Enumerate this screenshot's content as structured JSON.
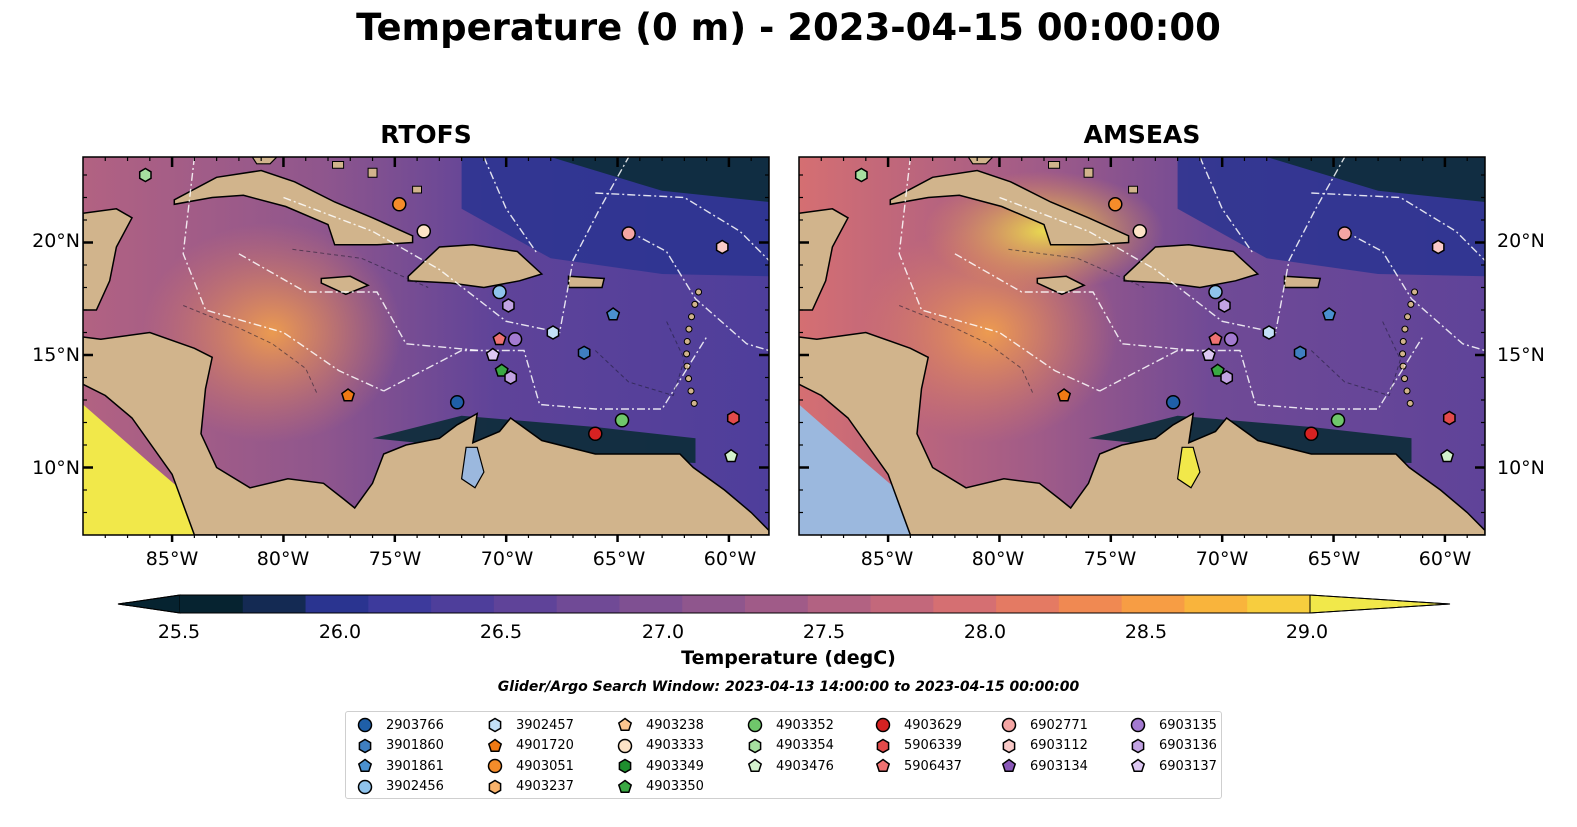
{
  "title": "Temperature (0 m) - 2023-04-15 00:00:00",
  "panels": [
    {
      "title": "RTOFS"
    },
    {
      "title": "AMSEAS"
    }
  ],
  "map": {
    "lat_labels": [
      "20°N",
      "15°N",
      "10°N"
    ],
    "lon_labels": [
      "85°W",
      "80°W",
      "75°W",
      "70°W",
      "65°W",
      "60°W"
    ],
    "extent": {
      "lon": [
        -89.0,
        -58.2
      ],
      "lat": [
        7.0,
        23.8
      ]
    },
    "colors": {
      "land": "#d1b48c",
      "lakes": "#9bb8de",
      "deep": "#0d2c3a",
      "mid": "#6a4a98",
      "warm": "#e4805d"
    }
  },
  "colorbar": {
    "label": "Temperature (degC)",
    "ticks": [
      "25.5",
      "26.0",
      "26.5",
      "27.0",
      "27.5",
      "28.0",
      "28.5",
      "29.0"
    ],
    "range": [
      25.5,
      29.25
    ],
    "colors": [
      "#062330",
      "#142a53",
      "#2a3490",
      "#3d3a9c",
      "#4e3e9b",
      "#5f4399",
      "#704a96",
      "#7f5092",
      "#8f568d",
      "#a05b88",
      "#b26282",
      "#c3687b",
      "#d56f72",
      "#e47a63",
      "#f08952",
      "#f79d44",
      "#f9b43c",
      "#f7cd3e",
      "#f1e84a"
    ]
  },
  "search_window": "Glider/Argo Search Window: 2023-04-13 14:00:00 to 2023-04-15 00:00:00",
  "legend": [
    {
      "id": "2903766",
      "marker": "circle",
      "color": "#1f5fa8"
    },
    {
      "id": "3901860",
      "marker": "hexagon",
      "color": "#3f7fc1"
    },
    {
      "id": "3901861",
      "marker": "pentagon",
      "color": "#4a90cf"
    },
    {
      "id": "3902456",
      "marker": "circle",
      "color": "#8fc3ec"
    },
    {
      "id": "3902457",
      "marker": "hexagon",
      "color": "#c4e0f7"
    },
    {
      "id": "4901720",
      "marker": "pentagon",
      "color": "#f07a14"
    },
    {
      "id": "4903051",
      "marker": "circle",
      "color": "#f58c2a"
    },
    {
      "id": "4903237",
      "marker": "hexagon",
      "color": "#f9b36b"
    },
    {
      "id": "4903238",
      "marker": "pentagon",
      "color": "#fbc58f"
    },
    {
      "id": "4903333",
      "marker": "circle",
      "color": "#fde3c6"
    },
    {
      "id": "4903349",
      "marker": "hexagon",
      "color": "#1e8f2e"
    },
    {
      "id": "4903350",
      "marker": "pentagon",
      "color": "#3aa843"
    },
    {
      "id": "4903352",
      "marker": "circle",
      "color": "#6fc66b"
    },
    {
      "id": "4903354",
      "marker": "hexagon",
      "color": "#a7e0a0"
    },
    {
      "id": "4903476",
      "marker": "pentagon",
      "color": "#d4f2cd"
    },
    {
      "id": "4903629",
      "marker": "circle",
      "color": "#d62222"
    },
    {
      "id": "5906339",
      "marker": "hexagon",
      "color": "#e34a4a"
    },
    {
      "id": "5906437",
      "marker": "pentagon",
      "color": "#ef7272"
    },
    {
      "id": "6902771",
      "marker": "circle",
      "color": "#f5a6a4"
    },
    {
      "id": "6903112",
      "marker": "hexagon",
      "color": "#f9cac8"
    },
    {
      "id": "6903134",
      "marker": "pentagon",
      "color": "#8a58b8"
    },
    {
      "id": "6903135",
      "marker": "circle",
      "color": "#a37ad0"
    },
    {
      "id": "6903136",
      "marker": "hexagon",
      "color": "#c2a3e2"
    },
    {
      "id": "6903137",
      "marker": "pentagon",
      "color": "#ddc8f2"
    }
  ],
  "floats": [
    {
      "id": "4903354",
      "lon": -86.2,
      "lat": 23.0
    },
    {
      "id": "4903051",
      "lon": -74.8,
      "lat": 21.7
    },
    {
      "id": "4903333",
      "lon": -73.7,
      "lat": 20.5
    },
    {
      "id": "6902771",
      "lon": -64.5,
      "lat": 20.4
    },
    {
      "id": "6903112",
      "lon": -60.3,
      "lat": 19.8
    },
    {
      "id": "3902456",
      "lon": -70.3,
      "lat": 17.8
    },
    {
      "id": "6903136",
      "lon": -69.9,
      "lat": 17.2
    },
    {
      "id": "3902457",
      "lon": -67.9,
      "lat": 16.0
    },
    {
      "id": "3901861",
      "lon": -65.2,
      "lat": 16.8
    },
    {
      "id": "5906437",
      "lon": -70.3,
      "lat": 15.7
    },
    {
      "id": "6903135",
      "lon": -69.6,
      "lat": 15.7
    },
    {
      "id": "6903137",
      "lon": -70.6,
      "lat": 15.0
    },
    {
      "id": "3901860",
      "lon": -66.5,
      "lat": 15.1
    },
    {
      "id": "4903350",
      "lon": -70.2,
      "lat": 14.3
    },
    {
      "id": "6903136",
      "lon": -69.8,
      "lat": 14.0
    },
    {
      "id": "4901720",
      "lon": -77.1,
      "lat": 13.2
    },
    {
      "id": "2903766",
      "lon": -72.2,
      "lat": 12.9
    },
    {
      "id": "4903352",
      "lon": -64.8,
      "lat": 12.1
    },
    {
      "id": "5906339",
      "lon": -59.8,
      "lat": 12.2
    },
    {
      "id": "4903629",
      "lon": -66.0,
      "lat": 11.5
    },
    {
      "id": "4903476",
      "lon": -59.9,
      "lat": 10.5
    }
  ]
}
